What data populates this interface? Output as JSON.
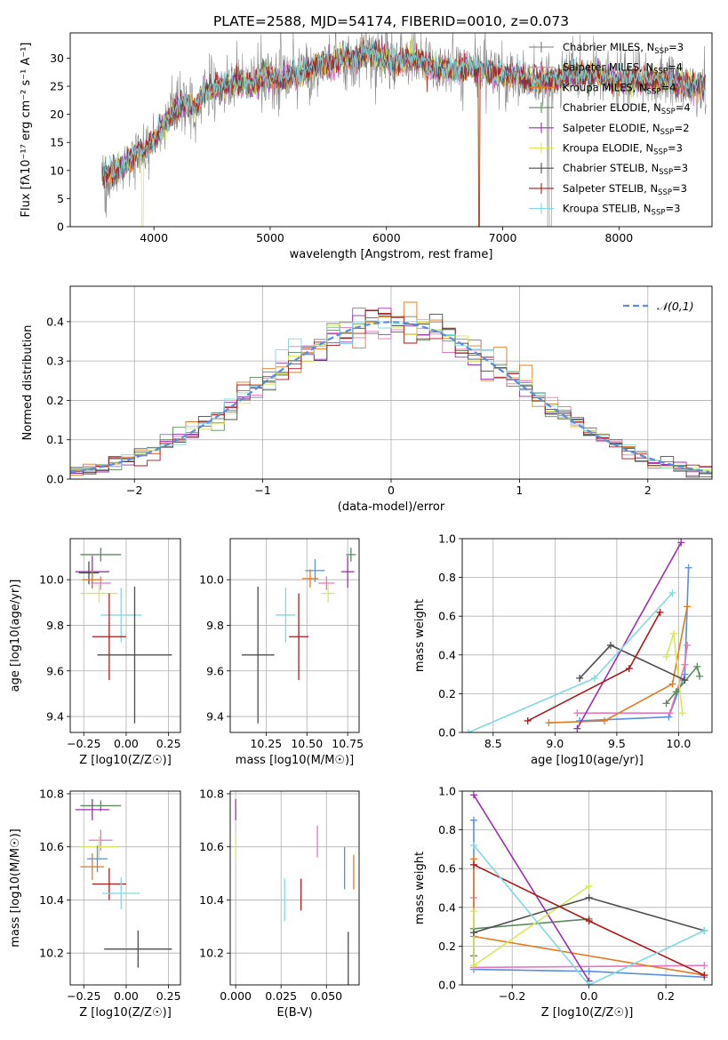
{
  "title": "PLATE=2588, MJD=54174, FIBERID=0010, z=0.073",
  "colors": {
    "chabrier_miles": "#7a7a7a",
    "salpeter_miles": "#e377c2",
    "kroupa_miles": "#e07b22",
    "chabrier_elodie": "#5a8a5a",
    "salpeter_elodie": "#9b30b0",
    "kroupa_elodie": "#d8e85a",
    "chabrier_stelib": "#4d4d4d",
    "salpeter_stelib": "#aa1a1a",
    "kroupa_stelib": "#80d8e0",
    "blue_line": "#5b8fd8",
    "spectrum_gray": "#808080"
  },
  "chart_data": [
    {
      "type": "line",
      "xlabel": "wavelength [Angstrom, rest frame]",
      "ylabel": "Flux [f$_\\lambda$10$^{-17}$ erg cm$^{-2}$ s$^{-1}$ A$^{-1}$]",
      "ylabel_display": "Flux [fλ10⁻¹⁷ erg cm⁻² s⁻¹ A⁻¹]",
      "xlim": [
        3280,
        8800
      ],
      "ylim": [
        0,
        34.5
      ],
      "xticks": [
        4000,
        5000,
        6000,
        7000,
        8000
      ],
      "yticks": [
        0,
        5,
        10,
        15,
        20,
        25,
        30
      ],
      "grid": false,
      "legend_placement": "upper-right",
      "legend": [
        {
          "label": "Chabrier MILES, N_SSP=3",
          "display": "Chabrier MILES, N",
          "sub": "SSP",
          "tail": "=3",
          "color": "#7a7a7a"
        },
        {
          "label": "Salpeter MILES, N_SSP=4",
          "display": "Salpeter MILES, N",
          "sub": "SSP",
          "tail": "=4",
          "color": "#e377c2"
        },
        {
          "label": "Kroupa MILES, N_SSP=4",
          "display": "Kroupa MILES, N",
          "sub": "SSP",
          "tail": "=4",
          "color": "#e07b22"
        },
        {
          "label": "Chabrier ELODIE, N_SSP=4",
          "display": "Chabrier ELODIE, N",
          "sub": "SSP",
          "tail": "=4",
          "color": "#5a8a5a"
        },
        {
          "label": "Salpeter ELODIE, N_SSP=2",
          "display": "Salpeter ELODIE, N",
          "sub": "SSP",
          "tail": "=2",
          "color": "#9b30b0"
        },
        {
          "label": "Kroupa ELODIE, N_SSP=3",
          "display": "Kroupa ELODIE, N",
          "sub": "SSP",
          "tail": "=3",
          "color": "#d8e85a"
        },
        {
          "label": "Chabrier STELIB, N_SSP=3",
          "display": "Chabrier STELIB, N",
          "sub": "SSP",
          "tail": "=3",
          "color": "#4d4d4d"
        },
        {
          "label": "Salpeter STELIB, N_SSP=3",
          "display": "Salpeter STELIB, N",
          "sub": "SSP",
          "tail": "=3",
          "color": "#aa1a1a"
        },
        {
          "label": "Kroupa STELIB, N_SSP=3",
          "display": "Kroupa STELIB, N",
          "sub": "SSP",
          "tail": "=3",
          "color": "#80d8e0"
        }
      ],
      "spectrum_shape": {
        "wavelength": [
          3550,
          3650,
          3750,
          3850,
          3950,
          4050,
          4150,
          4250,
          4350,
          4450,
          4550,
          4650,
          4750,
          4850,
          4950,
          5050,
          5150,
          5250,
          5350,
          5450,
          5550,
          5650,
          5750,
          5850,
          5950,
          6050,
          6150,
          6250,
          6350,
          6450,
          6550,
          6650,
          6750,
          6850,
          6950,
          7050,
          7150,
          7250,
          7350,
          7450,
          7550,
          7650,
          7750,
          7850,
          7950,
          8050,
          8150,
          8250,
          8350,
          8450,
          8550,
          8650,
          8750
        ],
        "flux": [
          9,
          10,
          11,
          13,
          14,
          17,
          20,
          22,
          21,
          24,
          25,
          25,
          26,
          25,
          27,
          26,
          27,
          27,
          28,
          29,
          29,
          30,
          30,
          31,
          30,
          29,
          30,
          30,
          29,
          28,
          28,
          28,
          28,
          28,
          27,
          27,
          27,
          26,
          26,
          26,
          27,
          27,
          27,
          27,
          26,
          26,
          26,
          26,
          26,
          26,
          25,
          25,
          25
        ]
      }
    },
    {
      "type": "line",
      "xlabel": "(data-model)/error",
      "ylabel": "Normed distribution",
      "xlim": [
        -2.5,
        2.5
      ],
      "ylim": [
        0,
        0.49
      ],
      "xticks": [
        -2,
        -1,
        0,
        1,
        2
      ],
      "yticks": [
        0.0,
        0.1,
        0.2,
        0.3,
        0.4
      ],
      "grid": true,
      "legend_placement": "upper-right",
      "legend": [
        {
          "label": "𝒩(0,1)",
          "color": "#5b8fd8",
          "style": "dashed"
        }
      ],
      "histogram_bin_width": 0.1
    },
    {
      "type": "scatter",
      "xlabel": "Z [log10(Z/Z☉)]",
      "ylabel": "age  [log10(age/yr)]",
      "xlim": [
        -0.33,
        0.32
      ],
      "ylim": [
        9.33,
        10.18
      ],
      "xticks": [
        -0.25,
        0.0,
        0.25
      ],
      "yticks": [
        9.4,
        9.6,
        9.8,
        10.0
      ],
      "grid": true,
      "points": [
        {
          "series": "Chabrier ELODIE",
          "x": -0.15,
          "y": 10.11,
          "xerr": 0.12,
          "yerr": 0.03,
          "color": "#5a8a5a"
        },
        {
          "series": "Salpeter ELODIE",
          "x": -0.2,
          "y": 10.035,
          "xerr": 0.1,
          "yerr": 0.07,
          "color": "#9b30b0"
        },
        {
          "series": "Chabrier MILES",
          "x": -0.22,
          "y": 10.03,
          "xerr": 0.06,
          "yerr": 0.05,
          "color": "#4d4d4d"
        },
        {
          "series": "Kroupa MILES",
          "x": -0.2,
          "y": 10.0,
          "xerr": 0.06,
          "yerr": 0.04,
          "color": "#e07b22"
        },
        {
          "series": "Salpeter MILES",
          "x": -0.15,
          "y": 9.985,
          "xerr": 0.06,
          "yerr": 0.03,
          "color": "#e377c2"
        },
        {
          "series": "Kroupa ELODIE",
          "x": -0.16,
          "y": 9.94,
          "xerr": 0.11,
          "yerr": 0.04,
          "color": "#d8e85a"
        },
        {
          "series": "Kroupa STELIB",
          "x": -0.03,
          "y": 9.845,
          "xerr": 0.12,
          "yerr": 0.12,
          "color": "#80d8e0"
        },
        {
          "series": "Salpeter STELIB",
          "x": -0.1,
          "y": 9.75,
          "xerr": 0.1,
          "yerr": 0.19,
          "color": "#aa1a1a"
        },
        {
          "series": "Chabrier STELIB",
          "x": 0.05,
          "y": 9.67,
          "xerr": 0.22,
          "yerr": 0.3,
          "color": "#4d4d4d"
        }
      ]
    },
    {
      "type": "scatter",
      "xlabel": "mass [log10(M/M☉)]",
      "ylabel": "",
      "xlim": [
        10.03,
        10.82
      ],
      "ylim": [
        9.33,
        10.18
      ],
      "xticks": [
        10.25,
        10.5,
        10.75
      ],
      "yticks": [
        9.4,
        9.6,
        9.8,
        10.0
      ],
      "grid": true,
      "points": [
        {
          "series": "Chabrier ELODIE",
          "x": 10.77,
          "y": 10.11,
          "xerr": 0.03,
          "yerr": 0.03,
          "color": "#5a8a5a"
        },
        {
          "series": "Salpeter ELODIE",
          "x": 10.75,
          "y": 10.035,
          "xerr": 0.04,
          "yerr": 0.07,
          "color": "#9b30b0"
        },
        {
          "series": "Chabrier MILES",
          "x": 10.55,
          "y": 10.04,
          "xerr": 0.06,
          "yerr": 0.05,
          "color": "#5b8fd8"
        },
        {
          "series": "Kroupa MILES",
          "x": 10.52,
          "y": 10.005,
          "xerr": 0.05,
          "yerr": 0.04,
          "color": "#e07b22"
        },
        {
          "series": "Salpeter MILES",
          "x": 10.62,
          "y": 9.985,
          "xerr": 0.05,
          "yerr": 0.03,
          "color": "#e377c2"
        },
        {
          "series": "Kroupa ELODIE",
          "x": 10.63,
          "y": 9.94,
          "xerr": 0.04,
          "yerr": 0.04,
          "color": "#d8e85a"
        },
        {
          "series": "Kroupa STELIB",
          "x": 10.37,
          "y": 9.845,
          "xerr": 0.06,
          "yerr": 0.12,
          "color": "#80d8e0"
        },
        {
          "series": "Salpeter STELIB",
          "x": 10.45,
          "y": 9.75,
          "xerr": 0.06,
          "yerr": 0.19,
          "color": "#aa1a1a"
        },
        {
          "series": "Chabrier STELIB",
          "x": 10.2,
          "y": 9.67,
          "xerr": 0.1,
          "yerr": 0.3,
          "color": "#4d4d4d"
        }
      ]
    },
    {
      "type": "line",
      "xlabel": "age  [log10(age/yr)]",
      "ylabel": "mass weight",
      "xlim": [
        8.25,
        10.27
      ],
      "ylim": [
        0,
        1.0
      ],
      "xticks": [
        8.5,
        9.0,
        9.5,
        10.0
      ],
      "yticks": [
        0.0,
        0.2,
        0.4,
        0.6,
        0.8,
        1.0
      ],
      "grid": true,
      "series": [
        {
          "name": "Chabrier MILES",
          "color": "#5b8fd8",
          "x": [
            9.2,
            9.92,
            10.05,
            10.08
          ],
          "y": [
            0.06,
            0.08,
            0.3,
            0.85
          ]
        },
        {
          "name": "Salpeter MILES",
          "color": "#e377c2",
          "x": [
            9.18,
            9.93,
            10.05,
            10.07
          ],
          "y": [
            0.1,
            0.1,
            0.35,
            0.45
          ]
        },
        {
          "name": "Kroupa MILES",
          "color": "#e07b22",
          "x": [
            8.95,
            9.4,
            9.95,
            10.07
          ],
          "y": [
            0.05,
            0.06,
            0.25,
            0.65
          ]
        },
        {
          "name": "Chabrier ELODIE",
          "color": "#5a8a5a",
          "x": [
            9.9,
            9.98,
            10.15,
            10.17
          ],
          "y": [
            0.15,
            0.21,
            0.34,
            0.29
          ]
        },
        {
          "name": "Salpeter ELODIE",
          "color": "#9b30b0",
          "x": [
            9.18,
            10.02
          ],
          "y": [
            0.02,
            0.98
          ]
        },
        {
          "name": "Kroupa ELODIE",
          "color": "#d8e85a",
          "x": [
            9.9,
            9.96,
            10.03
          ],
          "y": [
            0.39,
            0.51,
            0.1
          ]
        },
        {
          "name": "Chabrier STELIB",
          "color": "#4d4d4d",
          "x": [
            9.2,
            9.45,
            10.05
          ],
          "y": [
            0.28,
            0.45,
            0.27
          ]
        },
        {
          "name": "Salpeter STELIB",
          "color": "#aa1a1a",
          "x": [
            8.78,
            9.6,
            9.85
          ],
          "y": [
            0.06,
            0.33,
            0.62
          ]
        },
        {
          "name": "Kroupa STELIB",
          "color": "#80d8e0",
          "x": [
            8.3,
            9.32,
            9.95
          ],
          "y": [
            0.0,
            0.28,
            0.72
          ]
        }
      ]
    },
    {
      "type": "scatter",
      "xlabel": "Z [log10(Z/Z☉)]",
      "ylabel": "mass [log10(M/M☉)]",
      "xlim": [
        -0.33,
        0.32
      ],
      "ylim": [
        10.08,
        10.81
      ],
      "xticks": [
        -0.25,
        0.0,
        0.25
      ],
      "yticks": [
        10.2,
        10.4,
        10.6,
        10.8
      ],
      "grid": true,
      "points": [
        {
          "series": "Chabrier ELODIE",
          "x": -0.15,
          "y": 10.755,
          "xerr": 0.12,
          "yerr": 0.02,
          "color": "#5a8a5a"
        },
        {
          "series": "Salpeter ELODIE",
          "x": -0.2,
          "y": 10.74,
          "xerr": 0.1,
          "yerr": 0.04,
          "color": "#9b30b0"
        },
        {
          "series": "Salpeter MILES",
          "x": -0.15,
          "y": 10.625,
          "xerr": 0.07,
          "yerr": 0.04,
          "color": "#e377c2"
        },
        {
          "series": "Kroupa ELODIE",
          "x": -0.16,
          "y": 10.6,
          "xerr": 0.11,
          "yerr": 0.04,
          "color": "#d8e85a"
        },
        {
          "series": "Chabrier MILES",
          "x": -0.17,
          "y": 10.555,
          "xerr": 0.06,
          "yerr": 0.05,
          "color": "#5b8fd8"
        },
        {
          "series": "Kroupa MILES",
          "x": -0.2,
          "y": 10.525,
          "xerr": 0.07,
          "yerr": 0.05,
          "color": "#e07b22"
        },
        {
          "series": "Salpeter STELIB",
          "x": -0.1,
          "y": 10.46,
          "xerr": 0.1,
          "yerr": 0.06,
          "color": "#aa1a1a"
        },
        {
          "series": "Kroupa STELIB",
          "x": -0.03,
          "y": 10.425,
          "xerr": 0.11,
          "yerr": 0.06,
          "color": "#80d8e0"
        },
        {
          "series": "Chabrier STELIB",
          "x": 0.07,
          "y": 10.215,
          "xerr": 0.2,
          "yerr": 0.07,
          "color": "#4d4d4d"
        }
      ]
    },
    {
      "type": "scatter",
      "xlabel": "E(B-V)",
      "ylabel": "",
      "xlim": [
        -0.003,
        0.068
      ],
      "ylim": [
        10.08,
        10.81
      ],
      "xticks": [
        0.0,
        0.025,
        0.05
      ],
      "xticklabels": [
        "0.000",
        "0.025",
        "0.050"
      ],
      "yticks": [
        10.2,
        10.4,
        10.6,
        10.8
      ],
      "grid": true,
      "points": [
        {
          "series": "Salpeter ELODIE",
          "x": 0.0,
          "y": 10.74,
          "yerr": 0.04,
          "color": "#9b30b0"
        },
        {
          "series": "Kroupa ELODIE",
          "x": 0.0,
          "y": 10.6,
          "yerr": 0.04,
          "color": "#d8e85a"
        },
        {
          "series": "Salpeter MILES",
          "x": 0.045,
          "y": 10.62,
          "yerr": 0.06,
          "color": "#e377c2"
        },
        {
          "series": "Chabrier MILES",
          "x": 0.06,
          "y": 10.52,
          "yerr": 0.08,
          "color": "#5b8fd8"
        },
        {
          "series": "Kroupa MILES",
          "x": 0.065,
          "y": 10.505,
          "yerr": 0.065,
          "color": "#e07b22"
        },
        {
          "series": "Kroupa STELIB",
          "x": 0.027,
          "y": 10.4,
          "yerr": 0.08,
          "color": "#80d8e0"
        },
        {
          "series": "Salpeter STELIB",
          "x": 0.036,
          "y": 10.42,
          "yerr": 0.06,
          "color": "#aa1a1a"
        },
        {
          "series": "Chabrier STELIB",
          "x": 0.062,
          "y": 10.16,
          "yerr": 0.12,
          "color": "#4d4d4d"
        }
      ]
    },
    {
      "type": "line",
      "xlabel": "Z [log10(Z/Z☉)]",
      "ylabel": "mass weight",
      "xlim": [
        -0.33,
        0.32
      ],
      "ylim": [
        0,
        1.0
      ],
      "xticks": [
        -0.2,
        0.0,
        0.2
      ],
      "yticks": [
        0.0,
        0.2,
        0.4,
        0.6,
        0.8,
        1.0
      ],
      "grid": true,
      "series": [
        {
          "name": "Chabrier MILES",
          "color": "#5b8fd8",
          "x": [
            -0.3,
            -0.3,
            0.0,
            0.3
          ],
          "y": [
            0.85,
            0.08,
            0.07,
            0.04
          ]
        },
        {
          "name": "Salpeter MILES",
          "color": "#e377c2",
          "x": [
            -0.3,
            -0.3,
            0.3
          ],
          "y": [
            0.45,
            0.09,
            0.1
          ]
        },
        {
          "name": "Kroupa MILES",
          "color": "#e07b22",
          "x": [
            -0.3,
            -0.3,
            0.3
          ],
          "y": [
            0.65,
            0.25,
            0.05
          ]
        },
        {
          "name": "Chabrier ELODIE",
          "color": "#5a8a5a",
          "x": [
            -0.3,
            -0.3,
            0.0
          ],
          "y": [
            0.15,
            0.29,
            0.34
          ]
        },
        {
          "name": "Salpeter ELODIE",
          "color": "#9b30b0",
          "x": [
            -0.3,
            0.0
          ],
          "y": [
            0.98,
            0.02
          ]
        },
        {
          "name": "Kroupa ELODIE",
          "color": "#d8e85a",
          "x": [
            -0.3,
            -0.3,
            0.0
          ],
          "y": [
            0.38,
            0.1,
            0.51
          ]
        },
        {
          "name": "Chabrier STELIB",
          "color": "#4d4d4d",
          "x": [
            -0.3,
            0.0,
            0.3
          ],
          "y": [
            0.27,
            0.45,
            0.28
          ]
        },
        {
          "name": "Salpeter STELIB",
          "color": "#aa1a1a",
          "x": [
            -0.3,
            0.0,
            0.3
          ],
          "y": [
            0.62,
            0.33,
            0.05
          ]
        },
        {
          "name": "Kroupa STELIB",
          "color": "#80d8e0",
          "x": [
            -0.3,
            0.0,
            0.3
          ],
          "y": [
            0.72,
            0.0,
            0.28
          ]
        }
      ]
    }
  ]
}
